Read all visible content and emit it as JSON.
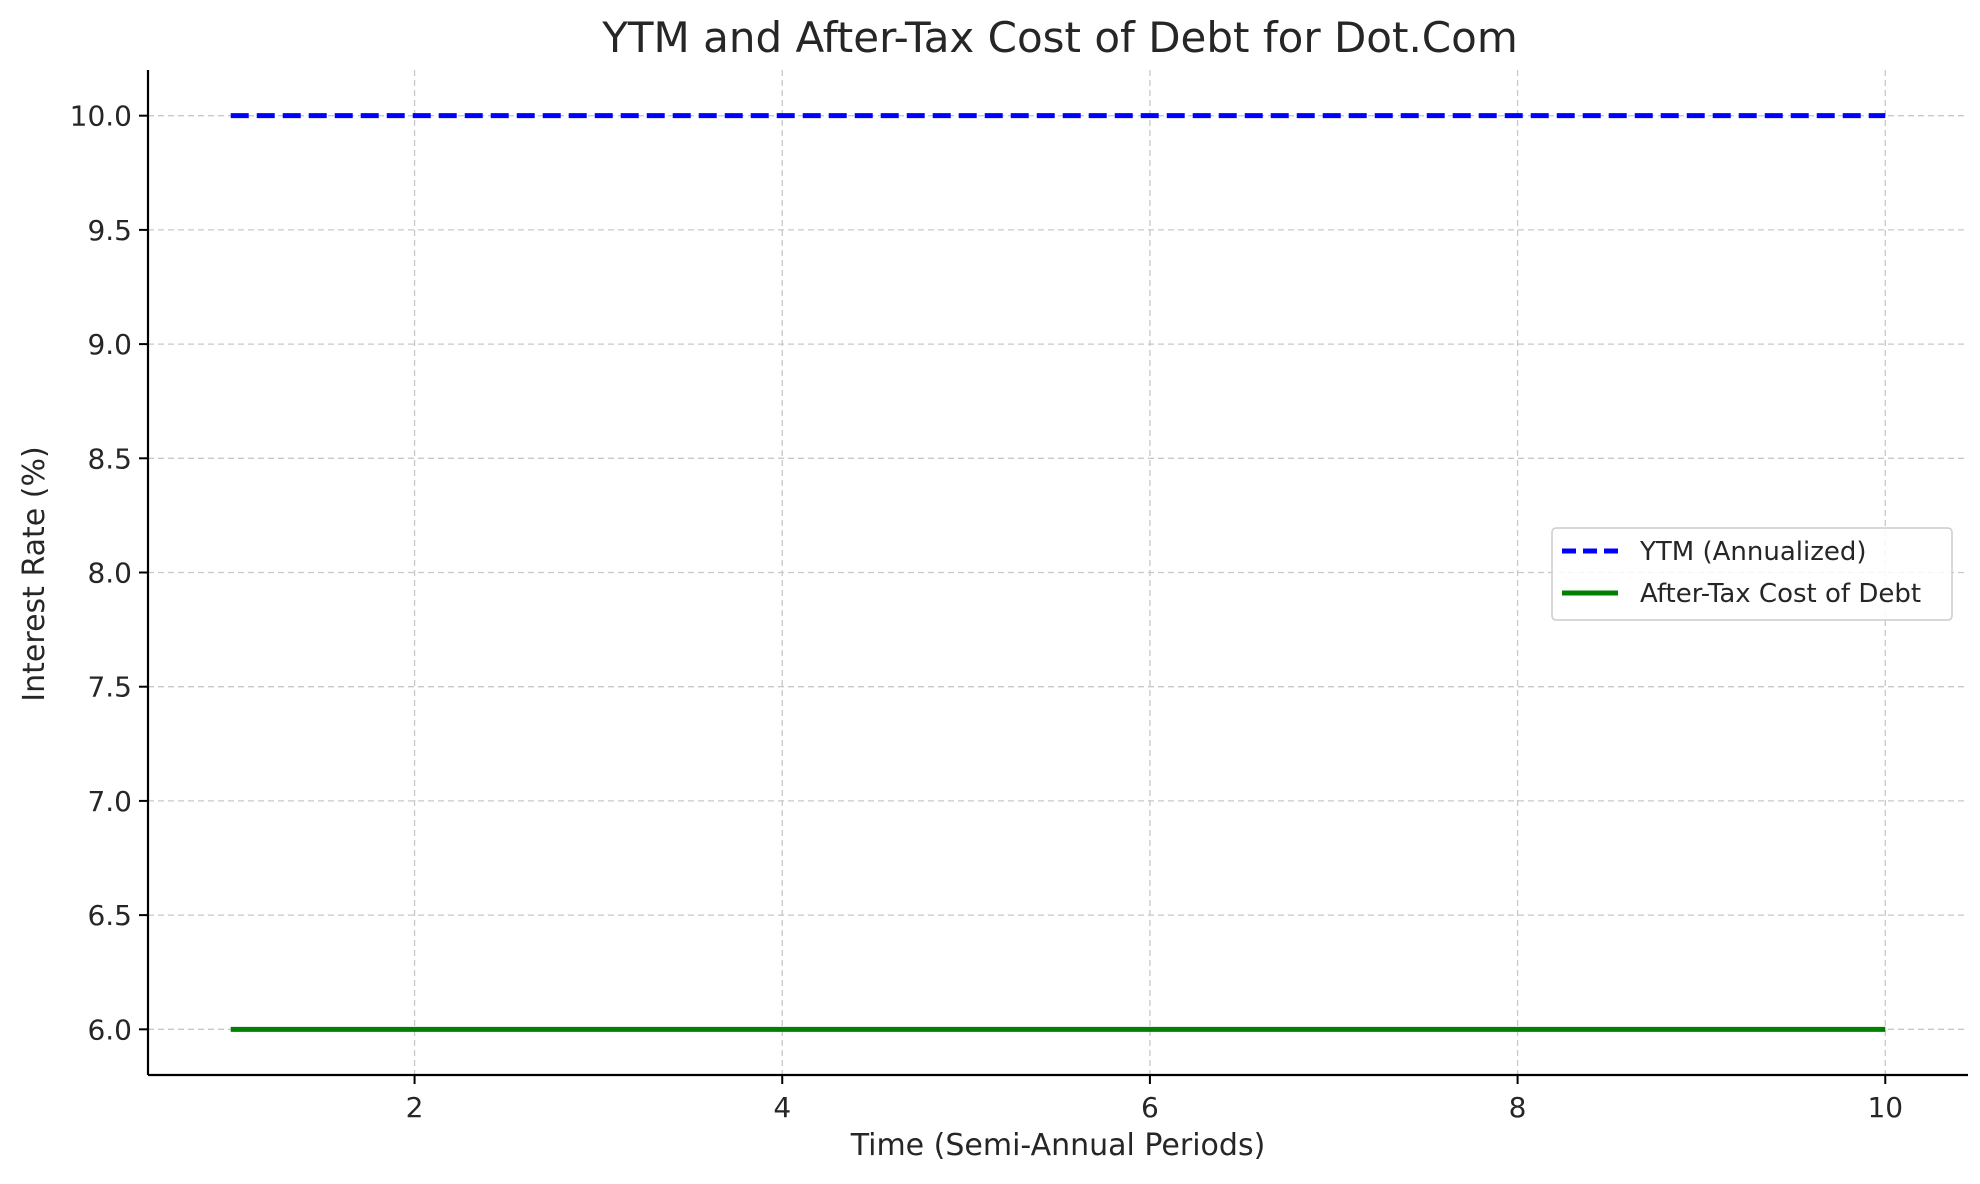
{
  "chart_data": {
    "type": "line",
    "title": "YTM and After-Tax Cost of Debt for Dot.Com",
    "xlabel": "Time (Semi-Annual Periods)",
    "ylabel": "Interest Rate (%)",
    "xlim": [
      0.55,
      10.45
    ],
    "ylim": [
      5.8,
      10.2
    ],
    "x_ticks": [
      2,
      4,
      6,
      8,
      10
    ],
    "x_tick_labels": [
      "2",
      "4",
      "6",
      "8",
      "10"
    ],
    "y_ticks": [
      6.0,
      6.5,
      7.0,
      7.5,
      8.0,
      8.5,
      9.0,
      9.5,
      10.0
    ],
    "y_tick_labels": [
      "6.0",
      "6.5",
      "7.0",
      "7.5",
      "8.0",
      "8.5",
      "9.0",
      "9.5",
      "10.0"
    ],
    "grid": true,
    "legend_position": "center-right",
    "x": [
      1,
      2,
      3,
      4,
      5,
      6,
      7,
      8,
      9,
      10
    ],
    "series": [
      {
        "name": "YTM (Annualized)",
        "values": [
          10.0,
          10.0,
          10.0,
          10.0,
          10.0,
          10.0,
          10.0,
          10.0,
          10.0,
          10.0
        ],
        "color": "#0000ff",
        "style": "dashed"
      },
      {
        "name": "After-Tax Cost of Debt",
        "values": [
          6.0,
          6.0,
          6.0,
          6.0,
          6.0,
          6.0,
          6.0,
          6.0,
          6.0,
          6.0
        ],
        "color": "#008000",
        "style": "solid"
      }
    ]
  }
}
